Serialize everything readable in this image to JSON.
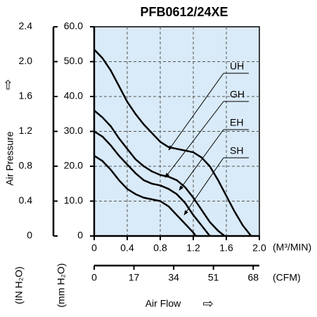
{
  "chart_data": {
    "type": "line",
    "title": "PFB0612/24XE",
    "x_label": "Air Flow",
    "x_unit": "(M³/MIN)",
    "x2_unit": "(CFM)",
    "y_label": "Air Pressure",
    "y_unit": "(mm H₂O)",
    "y2_unit": "(IN H₂O)",
    "xlim": [
      0,
      2
    ],
    "xticks": [
      0,
      0.4,
      0.8,
      1.2,
      1.6,
      {
        "value": 2,
        "label": "2.0"
      }
    ],
    "x2lim": [
      0,
      70.63
    ],
    "x2ticks": [
      0,
      17,
      34,
      51,
      68
    ],
    "ylim": [
      0,
      60
    ],
    "yticks": [
      0,
      {
        "value": 10,
        "label": "10.0"
      },
      {
        "value": 20,
        "label": "20.0"
      },
      {
        "value": 30,
        "label": "30.0"
      },
      {
        "value": 40,
        "label": "40.0"
      },
      {
        "value": 50,
        "label": "50.0"
      },
      {
        "value": 60,
        "label": "60.0"
      }
    ],
    "y2lim": [
      0,
      2.4
    ],
    "y2ticks": [
      0,
      0.4,
      0.8,
      1.2,
      1.6,
      {
        "value": 2,
        "label": "2.0"
      },
      2.4
    ],
    "grid": true,
    "plot_color": "#d9eaf8",
    "series": [
      {
        "name": "UH",
        "color": "#000000",
        "x": [
          0,
          0.1,
          0.2,
          0.3,
          0.4,
          0.5,
          0.6,
          0.7,
          0.8,
          0.9,
          1.0,
          1.1,
          1.2,
          1.3,
          1.4,
          1.5,
          1.6,
          1.7,
          1.8,
          1.9
        ],
        "values": [
          53.5,
          51,
          47.5,
          43,
          38.5,
          35,
          32,
          29.5,
          27,
          25.5,
          25,
          24.5,
          24,
          22.5,
          20,
          16,
          11.5,
          7,
          3,
          0
        ]
      },
      {
        "name": "GH",
        "color": "#000000",
        "x": [
          0,
          0.1,
          0.2,
          0.3,
          0.4,
          0.5,
          0.6,
          0.7,
          0.8,
          0.9,
          1.0,
          1.1,
          1.2,
          1.3,
          1.4,
          1.5,
          1.58
        ],
        "values": [
          36,
          34,
          31.5,
          28,
          25,
          22,
          20,
          18.5,
          17.5,
          17,
          16,
          14,
          11,
          7.5,
          4,
          1.5,
          0
        ]
      },
      {
        "name": "EH",
        "color": "#000000",
        "x": [
          0,
          0.1,
          0.2,
          0.3,
          0.4,
          0.5,
          0.6,
          0.7,
          0.8,
          0.9,
          1.0,
          1.1,
          1.2,
          1.3,
          1.4
        ],
        "values": [
          30,
          28.5,
          26,
          23,
          20.5,
          18,
          16,
          15,
          14.5,
          13.5,
          12,
          9.5,
          6,
          3,
          0
        ]
      },
      {
        "name": "SH",
        "color": "#000000",
        "x": [
          0,
          0.1,
          0.2,
          0.3,
          0.4,
          0.5,
          0.6,
          0.7,
          0.8,
          0.9,
          1.0,
          1.1,
          1.2,
          1.23
        ],
        "values": [
          23,
          21.5,
          19,
          16,
          13.5,
          12,
          11,
          10.5,
          10,
          8.5,
          6,
          3.5,
          1,
          0
        ]
      }
    ]
  }
}
